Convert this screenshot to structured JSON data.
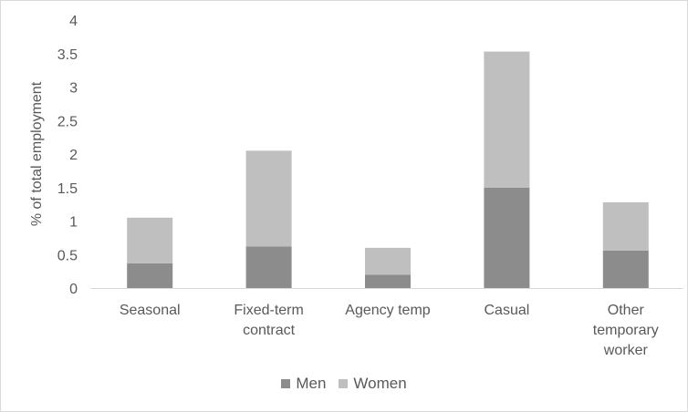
{
  "chart_data": {
    "type": "bar",
    "stacked": true,
    "title": "",
    "xlabel": "",
    "ylabel": "% of total employment",
    "ylim": [
      0,
      4
    ],
    "yticks": [
      0,
      0.5,
      1,
      1.5,
      2,
      2.5,
      3,
      3.5,
      4
    ],
    "ytick_labels": [
      "0",
      "0.5",
      "1",
      "1.5",
      "2",
      "2.5",
      "3",
      "3.5",
      "4"
    ],
    "grid": false,
    "legend_position": "bottom",
    "categories": [
      [
        "Seasonal"
      ],
      [
        "Fixed-term",
        "contract"
      ],
      [
        "Agency temp"
      ],
      [
        "Casual"
      ],
      [
        "Other",
        "temporary",
        "worker"
      ]
    ],
    "series": [
      {
        "name": "Men",
        "color": "#8c8c8c",
        "values": [
          0.37,
          0.62,
          0.2,
          1.5,
          0.56
        ]
      },
      {
        "name": "Women",
        "color": "#bfbfbf",
        "values": [
          0.68,
          1.43,
          0.4,
          2.03,
          0.72
        ]
      }
    ]
  }
}
